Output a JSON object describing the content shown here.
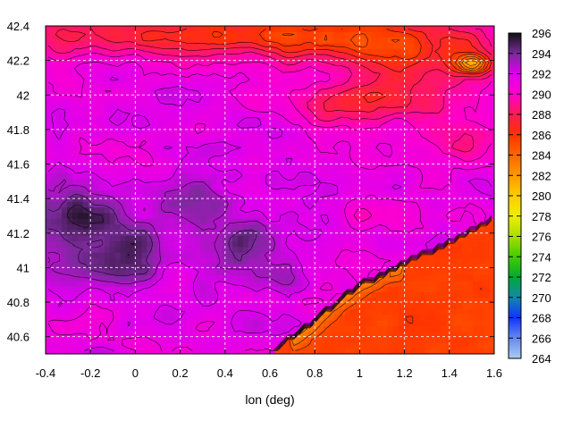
{
  "chart_data": {
    "type": "heatmap",
    "title": "",
    "xlabel": "lon (deg)",
    "ylabel": "",
    "xlim": [
      -0.4,
      1.6
    ],
    "ylim": [
      40.5,
      42.4
    ],
    "x_ticks": [
      -0.4,
      -0.2,
      0,
      0.2,
      0.4,
      0.6,
      0.8,
      1,
      1.2,
      1.4,
      1.6
    ],
    "x_tick_labels": [
      "-0.4",
      "-0.2",
      "0",
      "0.2",
      "0.4",
      "0.6",
      "0.8",
      "1",
      "1.2",
      "1.4",
      "1.6"
    ],
    "y_ticks": [
      40.6,
      40.8,
      41,
      41.2,
      41.4,
      41.6,
      41.8,
      42,
      42.2,
      42.4
    ],
    "y_tick_labels": [
      "40.6",
      "40.8",
      "41",
      "41.2",
      "41.4",
      "41.6",
      "41.8",
      "42",
      "42.2",
      "42.4"
    ],
    "grid": true,
    "colorbar": {
      "min": 264,
      "max": 296,
      "ticks": [
        264,
        266,
        268,
        270,
        272,
        274,
        276,
        278,
        280,
        282,
        284,
        286,
        288,
        290,
        292,
        294,
        296
      ],
      "tick_labels": [
        "264",
        "266",
        "268",
        "270",
        "272",
        "274",
        "276",
        "278",
        "280",
        "282",
        "284",
        "286",
        "288",
        "290",
        "292",
        "294",
        "296"
      ],
      "stops": [
        {
          "v": 264,
          "color": "#aaccf0"
        },
        {
          "v": 266,
          "color": "#6688ee"
        },
        {
          "v": 268,
          "color": "#1133ff"
        },
        {
          "v": 270,
          "color": "#1188aa"
        },
        {
          "v": 272,
          "color": "#00aa33"
        },
        {
          "v": 274,
          "color": "#44cc00"
        },
        {
          "v": 276,
          "color": "#aadd00"
        },
        {
          "v": 278,
          "color": "#eeee00"
        },
        {
          "v": 280,
          "color": "#ffcc00"
        },
        {
          "v": 282,
          "color": "#ff9900"
        },
        {
          "v": 284,
          "color": "#ff6600"
        },
        {
          "v": 286,
          "color": "#ff3300"
        },
        {
          "v": 288,
          "color": "#ff1a55"
        },
        {
          "v": 290,
          "color": "#ff00cc"
        },
        {
          "v": 292,
          "color": "#dd00ee"
        },
        {
          "v": 294,
          "color": "#7a2a9a"
        },
        {
          "v": 296,
          "color": "#111111"
        }
      ]
    }
  }
}
